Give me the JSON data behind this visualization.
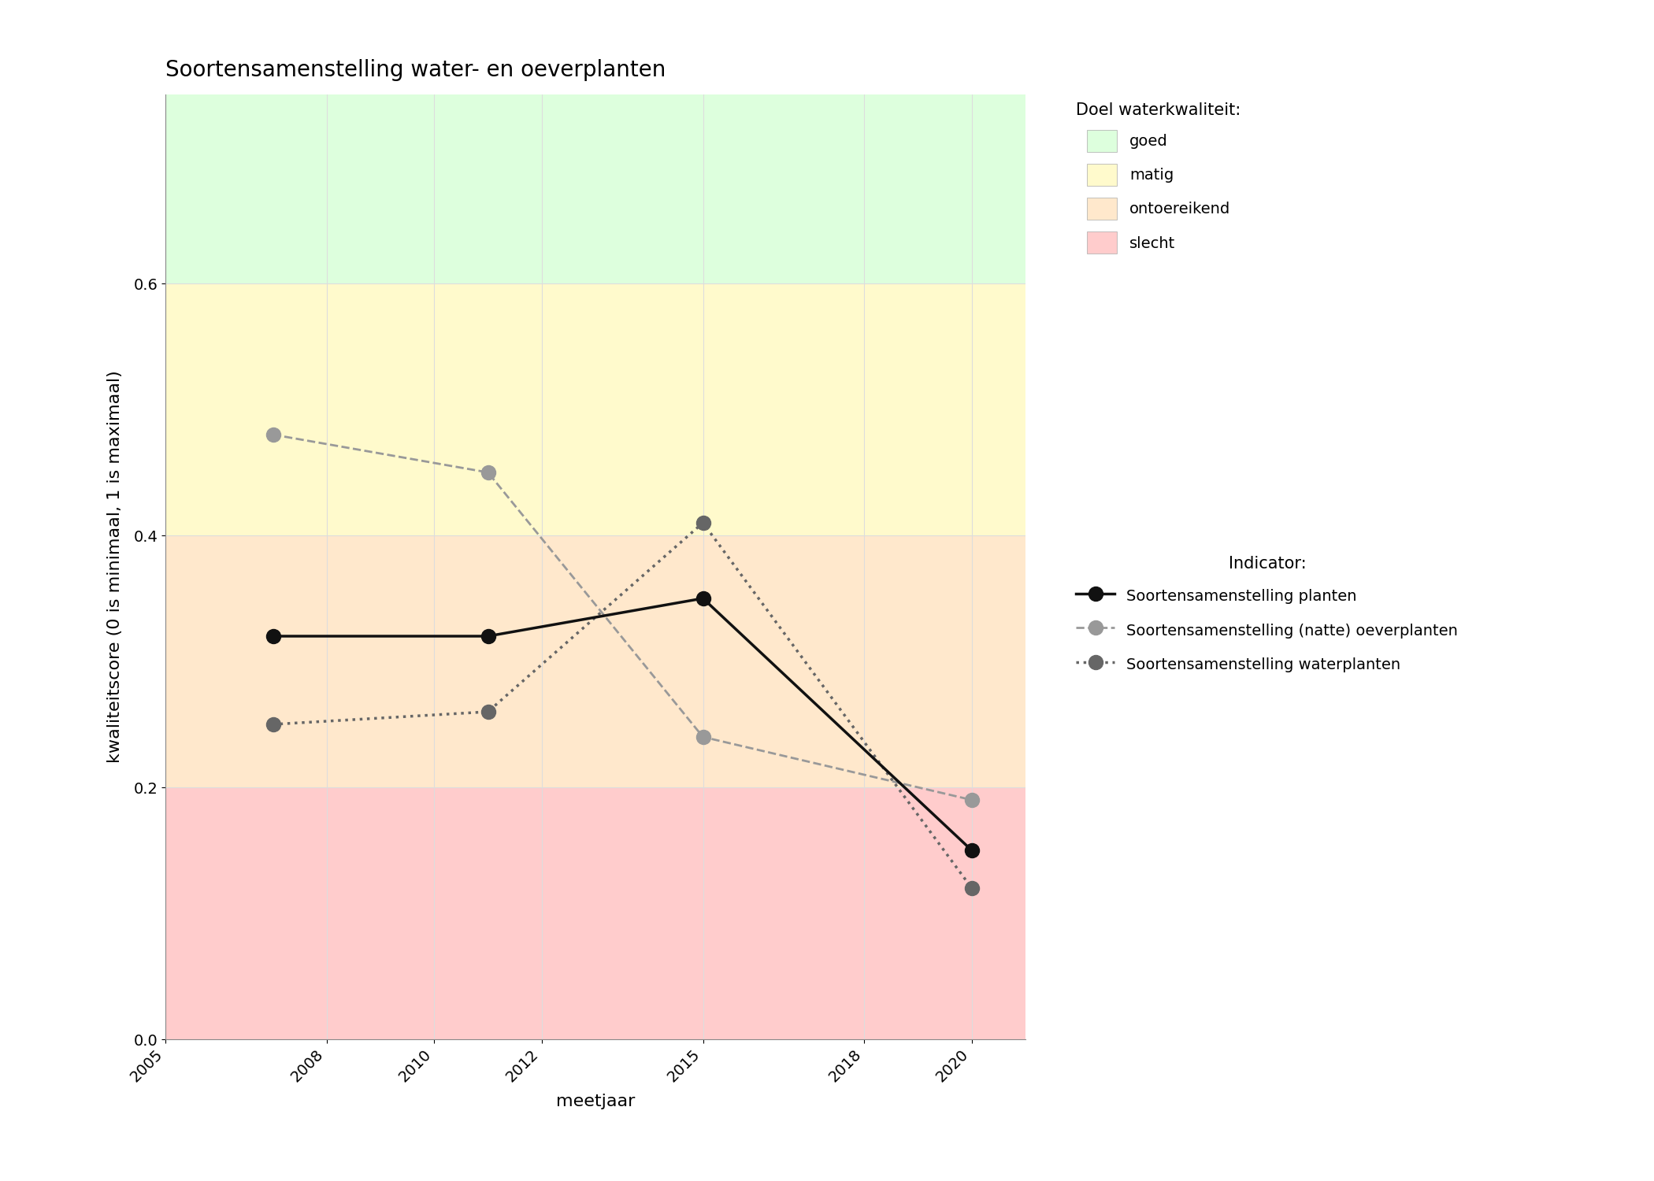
{
  "title": "Soortensamenstelling water- en oeverplanten",
  "xlabel": "meetjaar",
  "ylabel": "kwaliteitscore (0 is minimaal, 1 is maximaal)",
  "ylim": [
    0.0,
    0.75
  ],
  "xlim": [
    2005,
    2021
  ],
  "background_zones": [
    {
      "ymin": 0.0,
      "ymax": 0.2,
      "color": "#FFCCCC",
      "label": "slecht"
    },
    {
      "ymin": 0.2,
      "ymax": 0.4,
      "color": "#FFE8CC",
      "label": "ontoereikend"
    },
    {
      "ymin": 0.4,
      "ymax": 0.6,
      "color": "#FFFACC",
      "label": "matig"
    },
    {
      "ymin": 0.6,
      "ymax": 0.75,
      "color": "#DDFFDD",
      "label": "goed"
    }
  ],
  "series": [
    {
      "name": "Soortensamenstelling planten",
      "years": [
        2007,
        2011,
        2015,
        2020
      ],
      "values": [
        0.32,
        0.32,
        0.35,
        0.15
      ],
      "color": "#111111",
      "linestyle": "solid",
      "linewidth": 2.5,
      "marker": "o",
      "markersize": 13,
      "zorder": 5
    },
    {
      "name": "Soortensamenstelling (natte) oeverplanten",
      "years": [
        2007,
        2011,
        2015,
        2020
      ],
      "values": [
        0.48,
        0.45,
        0.24,
        0.19
      ],
      "color": "#999999",
      "linestyle": "dashed",
      "linewidth": 2.0,
      "marker": "o",
      "markersize": 13,
      "zorder": 4
    },
    {
      "name": "Soortensamenstelling waterplanten",
      "years": [
        2007,
        2011,
        2015,
        2020
      ],
      "values": [
        0.25,
        0.26,
        0.41,
        0.12
      ],
      "color": "#666666",
      "linestyle": "dotted",
      "linewidth": 2.5,
      "marker": "o",
      "markersize": 13,
      "zorder": 4
    }
  ],
  "legend_title_doel": "Doel waterkwaliteit:",
  "legend_title_indicator": "Indicator:",
  "legend_zone_colors": [
    "#DDFFDD",
    "#FFFACC",
    "#FFE8CC",
    "#FFCCCC"
  ],
  "legend_zone_labels": [
    "goed",
    "matig",
    "ontoereikend",
    "slecht"
  ],
  "xtick_positions": [
    2005,
    2008,
    2010,
    2012,
    2015,
    2018,
    2020
  ],
  "ytick_positions": [
    0.0,
    0.2,
    0.4,
    0.6
  ],
  "grid_color": "#dddddd",
  "background_color": "#ffffff",
  "title_fontsize": 20,
  "axis_label_fontsize": 16,
  "tick_fontsize": 14,
  "legend_fontsize": 14,
  "legend_title_fontsize": 15
}
